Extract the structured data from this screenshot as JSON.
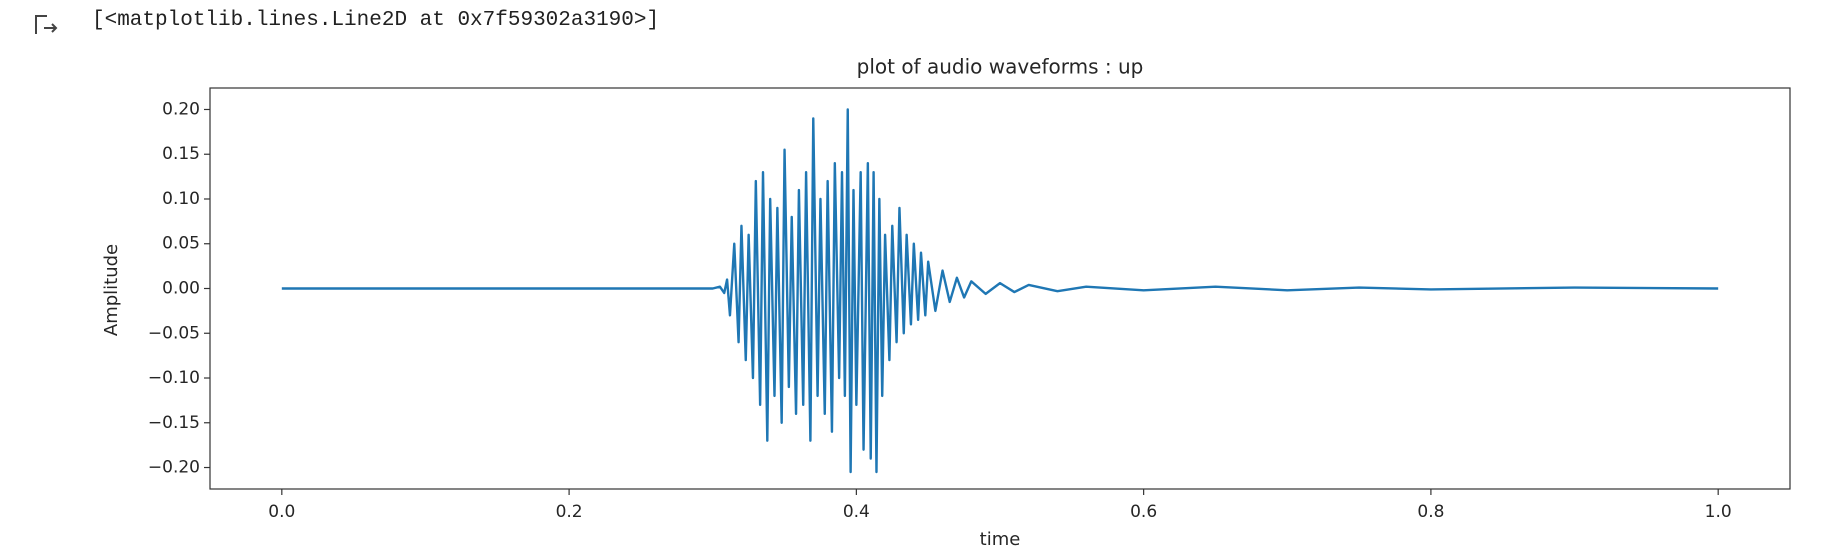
{
  "output": {
    "text": "[<matplotlib.lines.Line2D at 0x7f59302a3190>]"
  },
  "chart_data": {
    "type": "line",
    "title": "plot of audio waveforms : up",
    "x_label": "time",
    "y_label": "Amplitude",
    "x": [
      0,
      0.1,
      0.2,
      0.3,
      0.305,
      0.308,
      0.31,
      0.312,
      0.315,
      0.318,
      0.32,
      0.323,
      0.325,
      0.328,
      0.33,
      0.333,
      0.335,
      0.338,
      0.34,
      0.343,
      0.345,
      0.348,
      0.35,
      0.353,
      0.355,
      0.358,
      0.36,
      0.363,
      0.365,
      0.368,
      0.37,
      0.373,
      0.375,
      0.378,
      0.38,
      0.383,
      0.385,
      0.388,
      0.39,
      0.392,
      0.394,
      0.396,
      0.398,
      0.4,
      0.403,
      0.405,
      0.408,
      0.41,
      0.412,
      0.414,
      0.416,
      0.418,
      0.42,
      0.423,
      0.425,
      0.428,
      0.43,
      0.433,
      0.435,
      0.438,
      0.44,
      0.443,
      0.445,
      0.448,
      0.45,
      0.455,
      0.46,
      0.465,
      0.47,
      0.475,
      0.48,
      0.49,
      0.5,
      0.51,
      0.52,
      0.54,
      0.56,
      0.6,
      0.65,
      0.7,
      0.75,
      0.8,
      0.9,
      1.0
    ],
    "series": [
      {
        "color": "#1f77b4",
        "values": [
          0,
          0,
          0,
          0,
          0.002,
          -0.005,
          0.01,
          -0.03,
          0.05,
          -0.06,
          0.07,
          -0.08,
          0.06,
          -0.1,
          0.12,
          -0.13,
          0.13,
          -0.17,
          0.1,
          -0.12,
          0.09,
          -0.15,
          0.155,
          -0.11,
          0.08,
          -0.14,
          0.11,
          -0.13,
          0.13,
          -0.17,
          0.19,
          -0.12,
          0.1,
          -0.14,
          0.12,
          -0.16,
          0.14,
          -0.1,
          0.13,
          -0.12,
          0.2,
          -0.205,
          0.11,
          -0.13,
          0.13,
          -0.18,
          0.14,
          -0.19,
          0.13,
          -0.205,
          0.1,
          -0.12,
          0.06,
          -0.08,
          0.07,
          -0.06,
          0.09,
          -0.05,
          0.06,
          -0.04,
          0.05,
          -0.035,
          0.04,
          -0.03,
          0.03,
          -0.025,
          0.02,
          -0.015,
          0.012,
          -0.01,
          0.008,
          -0.006,
          0.006,
          -0.004,
          0.004,
          -0.003,
          0.002,
          -0.002,
          0.002,
          -0.002,
          0.001,
          -0.001,
          0.001,
          0
        ]
      }
    ],
    "xlim": [
      -0.05,
      1.05
    ],
    "xticks": [
      {
        "value": 0,
        "label": "0.0"
      },
      0.2,
      0.4,
      0.6,
      0.8,
      {
        "value": 1,
        "label": "1.0"
      }
    ],
    "ylim": [
      -0.224,
      0.224
    ],
    "yticks": [
      {
        "value": -0.2,
        "label": "−0.20"
      },
      {
        "value": -0.15,
        "label": "−0.15"
      },
      {
        "value": -0.1,
        "label": "−0.10"
      },
      {
        "value": -0.05,
        "label": "−0.05"
      },
      {
        "value": 0,
        "label": "0.00"
      },
      {
        "value": 0.05,
        "label": "0.05"
      },
      {
        "value": 0.1,
        "label": "0.10"
      },
      {
        "value": 0.15,
        "label": "0.15"
      },
      {
        "value": 0.2,
        "label": "0.20"
      }
    ],
    "grid": false
  }
}
